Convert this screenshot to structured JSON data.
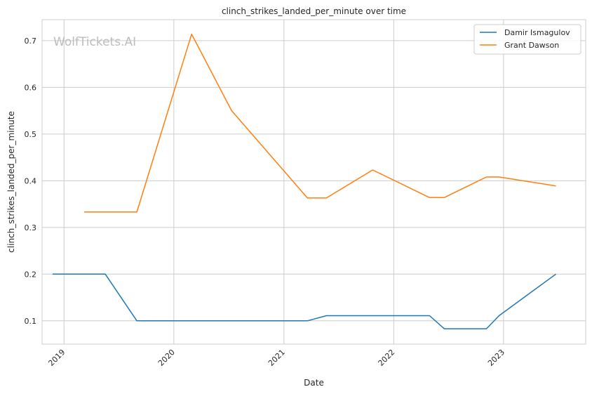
{
  "watermark": "WolfTickets.AI",
  "colors": {
    "grid": "#cccccc",
    "frame": "#cccccc",
    "text": "#262626"
  },
  "chart_data": {
    "type": "line",
    "title": "clinch_strikes_landed_per_minute over time",
    "xlabel": "Date",
    "ylabel": "clinch_strikes_landed_per_minute",
    "x_axis_type": "date",
    "xlim": [
      "2018-10-20",
      "2023-10-01"
    ],
    "ylim": [
      0.05,
      0.745
    ],
    "x_ticks": [
      "2019-01-01",
      "2020-01-01",
      "2021-01-01",
      "2022-01-01",
      "2023-01-01"
    ],
    "x_tick_labels": [
      "2019",
      "2020",
      "2021",
      "2022",
      "2023"
    ],
    "y_ticks": [
      0.1,
      0.2,
      0.3,
      0.4,
      0.5,
      0.6,
      0.7
    ],
    "y_tick_labels": [
      "0.1",
      "0.2",
      "0.3",
      "0.4",
      "0.5",
      "0.6",
      "0.7"
    ],
    "grid": true,
    "legend_position": "top-right",
    "series": [
      {
        "name": "Damir Ismagulov",
        "color": "#1f77b4",
        "points": [
          {
            "x": "2018-11-24",
            "y": 0.2
          },
          {
            "x": "2019-05-18",
            "y": 0.2
          },
          {
            "x": "2019-08-31",
            "y": 0.1
          },
          {
            "x": "2021-03-20",
            "y": 0.1
          },
          {
            "x": "2021-05-22",
            "y": 0.111
          },
          {
            "x": "2022-04-30",
            "y": 0.111
          },
          {
            "x": "2022-06-18",
            "y": 0.083
          },
          {
            "x": "2022-11-05",
            "y": 0.083
          },
          {
            "x": "2022-12-17",
            "y": 0.111
          },
          {
            "x": "2023-06-24",
            "y": 0.2
          }
        ]
      },
      {
        "name": "Grant Dawson",
        "color": "#ff7f0e",
        "points": [
          {
            "x": "2019-03-09",
            "y": 0.333
          },
          {
            "x": "2019-08-31",
            "y": 0.333
          },
          {
            "x": "2020-02-29",
            "y": 0.714
          },
          {
            "x": "2020-07-11",
            "y": 0.55
          },
          {
            "x": "2021-03-20",
            "y": 0.363
          },
          {
            "x": "2021-05-22",
            "y": 0.363
          },
          {
            "x": "2021-10-23",
            "y": 0.423
          },
          {
            "x": "2022-04-30",
            "y": 0.364
          },
          {
            "x": "2022-06-18",
            "y": 0.364
          },
          {
            "x": "2022-11-05",
            "y": 0.408
          },
          {
            "x": "2022-12-17",
            "y": 0.408
          },
          {
            "x": "2023-06-24",
            "y": 0.389
          }
        ]
      }
    ]
  }
}
